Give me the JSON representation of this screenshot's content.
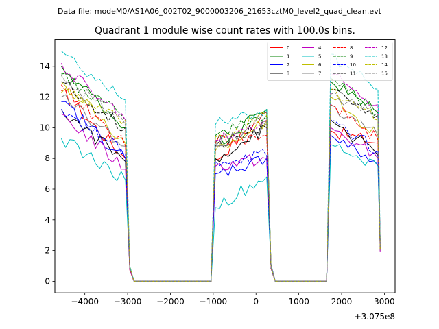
{
  "chart_data": {
    "type": "line",
    "suptitle": "Data file: modeM0/AS1A06_002T02_9000003206_21653cztM0_level2_quad_clean.evt",
    "title": "Quadrant 1 module wise count rates with 100.0s bins.",
    "xlabel": "",
    "ylabel": "",
    "offset_text": "+3.075e8",
    "xlim": [
      -4700,
      3250
    ],
    "ylim": [
      -0.75,
      15.75
    ],
    "xticks": [
      -4000,
      -3000,
      -2000,
      -1000,
      0,
      1000,
      2000,
      3000
    ],
    "xtick_labels": [
      "−4000",
      "−3000",
      "−2000",
      "−1000",
      "0",
      "1000",
      "2000",
      "3000"
    ],
    "yticks": [
      0,
      2,
      4,
      6,
      8,
      10,
      12,
      14
    ],
    "ytick_labels": [
      "0",
      "2",
      "4",
      "6",
      "8",
      "10",
      "12",
      "14"
    ],
    "grid": false,
    "legend_position": "top-right",
    "segments": [
      {
        "start": -4550,
        "end": -3050,
        "n": 16
      },
      {
        "start": -950,
        "end": 250,
        "n": 13
      },
      {
        "start": 1750,
        "end": 2850,
        "n": 12
      }
    ],
    "series": [
      {
        "name": "0",
        "color": "#ff0000",
        "dash": "solid",
        "levels": [
          12.4,
          8.0,
          7.9,
          11.0,
          9.8,
          9.0
        ]
      },
      {
        "name": "1",
        "color": "#008000",
        "dash": "solid",
        "levels": [
          14.0,
          10.0,
          9.0,
          11.2,
          13.0,
          11.0
        ]
      },
      {
        "name": "2",
        "color": "#0000ff",
        "dash": "solid",
        "levels": [
          11.7,
          8.0,
          7.0,
          8.0,
          9.5,
          7.6
        ]
      },
      {
        "name": "3",
        "color": "#000000",
        "dash": "solid",
        "levels": [
          11.2,
          7.8,
          8.0,
          10.0,
          10.5,
          8.2
        ]
      },
      {
        "name": "4",
        "color": "#c000c0",
        "dash": "solid",
        "levels": [
          10.9,
          7.3,
          7.5,
          8.0,
          10.0,
          8.0
        ]
      },
      {
        "name": "5",
        "color": "#00bfbf",
        "dash": "solid",
        "levels": [
          9.3,
          6.6,
          4.8,
          6.8,
          8.9,
          7.5
        ]
      },
      {
        "name": "6",
        "color": "#bfbf00",
        "dash": "solid",
        "levels": [
          13.0,
          9.0,
          8.5,
          10.5,
          12.0,
          9.5
        ]
      },
      {
        "name": "7",
        "color": "#808080",
        "dash": "solid",
        "levels": [
          12.0,
          8.8,
          8.8,
          10.2,
          11.5,
          9.5
        ]
      },
      {
        "name": "8",
        "color": "#ff0000",
        "dash": "dashed",
        "levels": [
          12.8,
          8.8,
          9.0,
          9.5,
          11.5,
          9.2
        ]
      },
      {
        "name": "9",
        "color": "#008000",
        "dash": "dashed",
        "levels": [
          13.5,
          10.5,
          9.5,
          10.8,
          13.2,
          11.0
        ]
      },
      {
        "name": "10",
        "color": "#0000ff",
        "dash": "dashed",
        "levels": [
          11.2,
          8.3,
          7.8,
          8.2,
          10.5,
          8.5
        ]
      },
      {
        "name": "11",
        "color": "#000000",
        "dash": "dashed",
        "levels": [
          13.0,
          10.0,
          8.8,
          10.4,
          12.5,
          10.8
        ]
      },
      {
        "name": "12",
        "color": "#c000c0",
        "dash": "dashed",
        "levels": [
          14.2,
          10.5,
          9.2,
          10.5,
          13.5,
          11.5
        ]
      },
      {
        "name": "13",
        "color": "#00bfbf",
        "dash": "dashed",
        "levels": [
          15.0,
          11.8,
          10.2,
          11.2,
          14.8,
          12.5
        ]
      },
      {
        "name": "14",
        "color": "#bfbf00",
        "dash": "dashed",
        "levels": [
          12.3,
          10.5,
          9.4,
          10.8,
          12.5,
          10.5
        ]
      },
      {
        "name": "15",
        "color": "#808080",
        "dash": "dashed",
        "levels": [
          13.4,
          10.2,
          9.0,
          10.6,
          12.2,
          10.8
        ]
      }
    ]
  }
}
